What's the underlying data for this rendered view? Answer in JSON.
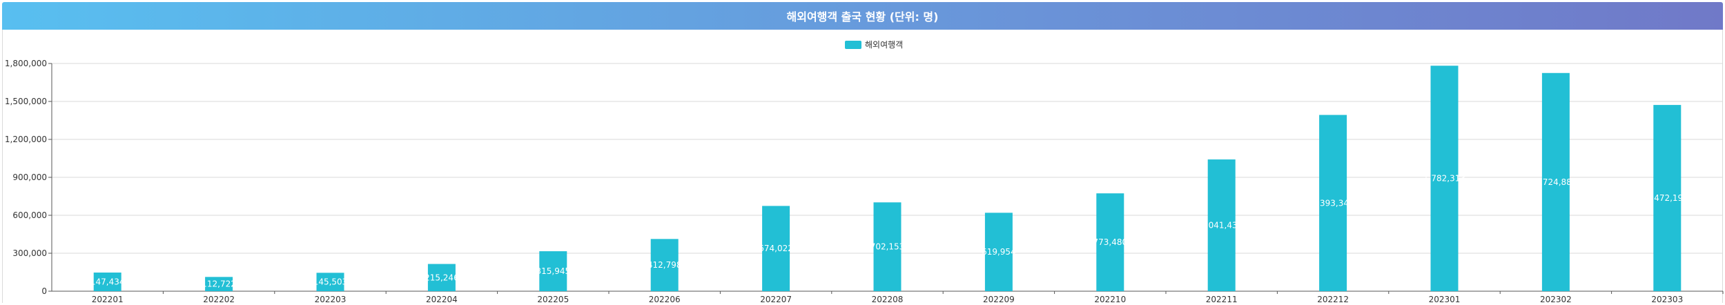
{
  "chart_data": {
    "type": "bar",
    "title": "해외여행객 출국 현황 (단위: 명)",
    "categories": [
      "202201",
      "202202",
      "202203",
      "202204",
      "202205",
      "202206",
      "202207",
      "202208",
      "202209",
      "202210",
      "202211",
      "202212",
      "202301",
      "202302",
      "202303"
    ],
    "series": [
      {
        "name": "해외여행객",
        "color": "#22bfd5",
        "values": [
          147434,
          112722,
          145503,
          215246,
          315945,
          412798,
          674022,
          702153,
          619954,
          773480,
          1041431,
          1393343,
          1782313,
          1724880,
          1472193
        ]
      }
    ],
    "data_labels": [
      "147,434",
      "112,722",
      "145,503",
      "215,246",
      "315,945",
      "412,798",
      "674,022",
      "702,153",
      "619,954",
      "773,480",
      "1,041,431",
      "1,393,343",
      "1,782,313",
      "1,724,880",
      "1,472,193"
    ],
    "y_ticks": [
      "0",
      "300,000",
      "600,000",
      "900,000",
      "1,200,000",
      "1,500,000",
      "1,800,000"
    ],
    "ylim": [
      0,
      1800000
    ],
    "grid": true,
    "legend_position": "top-center"
  }
}
